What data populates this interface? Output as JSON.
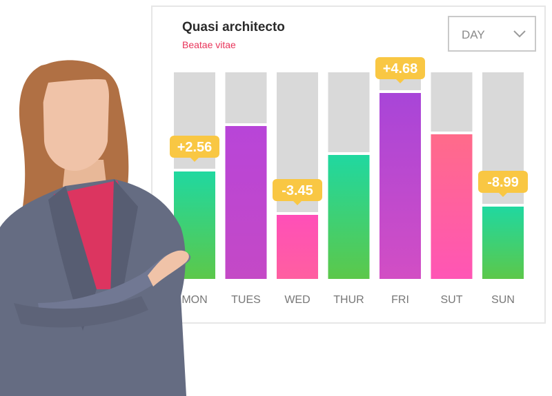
{
  "header": {
    "title": "Quasi architecto",
    "subtitle": "Beatae vitae"
  },
  "dropdown": {
    "selected": "DAY",
    "icon": "chevron-down-icon"
  },
  "chart_data": {
    "type": "bar",
    "categories": [
      "MON",
      "TUES",
      "WED",
      "THUR",
      "FRI",
      "SUT",
      "SUN"
    ],
    "values": [
      0.52,
      0.74,
      0.31,
      0.6,
      0.9,
      0.7,
      0.35
    ],
    "value_scale": "fraction of full bar height",
    "callouts": [
      {
        "category": "MON",
        "label": "+2.56"
      },
      {
        "category": "WED",
        "label": "-3.45"
      },
      {
        "category": "FRI",
        "label": "+4.68"
      },
      {
        "category": "SUN",
        "label": "-8.99"
      }
    ],
    "bar_gradients": {
      "MON": [
        "#20d8a0",
        "#5cc84a"
      ],
      "TUES": [
        "#b845d8",
        "#c449c6"
      ],
      "WED": [
        "#ff4fb8",
        "#ff5fa0"
      ],
      "THUR": [
        "#20d8a0",
        "#5cc84a"
      ],
      "FRI": [
        "#a845d8",
        "#d24ec4"
      ],
      "SUT": [
        "#ff6b8a",
        "#ff55b5"
      ],
      "SUN": [
        "#20d8a0",
        "#5cc84a"
      ]
    },
    "track_color": "#d9d9d9",
    "callout_color": "#f9c743"
  }
}
